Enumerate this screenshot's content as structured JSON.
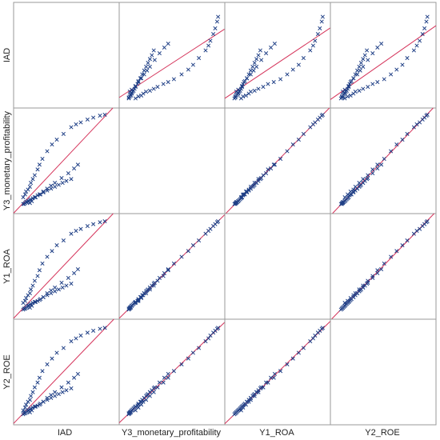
{
  "chart_data": {
    "type": "scatter",
    "subtype": "scatter-matrix",
    "variables": [
      "IAD",
      "Y3_monetary_profitability",
      "Y1_ROA",
      "Y2_ROE"
    ],
    "diagonal": "empty",
    "marker": "x",
    "fit_line": true,
    "colors": {
      "points": "#1f3f86",
      "fit_line": "#d5335a",
      "border": "#9a9a9a"
    },
    "series_values": {
      "IAD": [
        0.05,
        0.07,
        0.08,
        0.1,
        0.12,
        0.13,
        0.15,
        0.17,
        0.2,
        0.22,
        0.25,
        0.3,
        0.35,
        0.4,
        0.47,
        0.55,
        0.6,
        0.65,
        0.72,
        0.78,
        0.85,
        0.9,
        0.12,
        0.14,
        0.18,
        0.22,
        0.26,
        0.3,
        0.34,
        0.38,
        0.45,
        0.52,
        0.58,
        0.62,
        0.05,
        0.06,
        0.07,
        0.08,
        0.09,
        0.1,
        0.11,
        0.12,
        0.13,
        0.15,
        0.17,
        0.2,
        0.23,
        0.26,
        0.3,
        0.34,
        0.38,
        0.42,
        0.46,
        0.5,
        0.55
      ],
      "Y3_monetary_profitability": [
        0.12,
        0.15,
        0.18,
        0.2,
        0.23,
        0.27,
        0.31,
        0.35,
        0.41,
        0.46,
        0.52,
        0.6,
        0.67,
        0.72,
        0.78,
        0.85,
        0.88,
        0.9,
        0.93,
        0.95,
        0.97,
        0.98,
        0.06,
        0.08,
        0.12,
        0.15,
        0.18,
        0.21,
        0.24,
        0.27,
        0.32,
        0.37,
        0.42,
        0.46,
        0.05,
        0.05,
        0.06,
        0.07,
        0.07,
        0.08,
        0.08,
        0.09,
        0.1,
        0.11,
        0.12,
        0.14,
        0.15,
        0.17,
        0.19,
        0.21,
        0.23,
        0.25,
        0.27,
        0.29,
        0.31
      ],
      "Y1_ROA": [
        0.12,
        0.14,
        0.17,
        0.2,
        0.22,
        0.26,
        0.3,
        0.35,
        0.4,
        0.46,
        0.53,
        0.6,
        0.66,
        0.72,
        0.77,
        0.84,
        0.87,
        0.89,
        0.92,
        0.94,
        0.96,
        0.97,
        0.07,
        0.09,
        0.13,
        0.15,
        0.18,
        0.22,
        0.25,
        0.28,
        0.33,
        0.38,
        0.43,
        0.47,
        0.05,
        0.06,
        0.06,
        0.07,
        0.08,
        0.09,
        0.09,
        0.1,
        0.11,
        0.12,
        0.13,
        0.14,
        0.16,
        0.18,
        0.2,
        0.22,
        0.24,
        0.26,
        0.28,
        0.3,
        0.32
      ],
      "Y2_ROE": [
        0.1,
        0.13,
        0.16,
        0.19,
        0.21,
        0.25,
        0.29,
        0.34,
        0.39,
        0.44,
        0.51,
        0.58,
        0.64,
        0.7,
        0.75,
        0.82,
        0.85,
        0.88,
        0.91,
        0.93,
        0.95,
        0.96,
        0.08,
        0.1,
        0.14,
        0.16,
        0.19,
        0.23,
        0.26,
        0.29,
        0.34,
        0.39,
        0.44,
        0.48,
        0.06,
        0.07,
        0.07,
        0.08,
        0.09,
        0.1,
        0.1,
        0.11,
        0.12,
        0.13,
        0.14,
        0.15,
        0.17,
        0.19,
        0.21,
        0.23,
        0.25,
        0.27,
        0.29,
        0.31,
        0.33
      ]
    }
  }
}
